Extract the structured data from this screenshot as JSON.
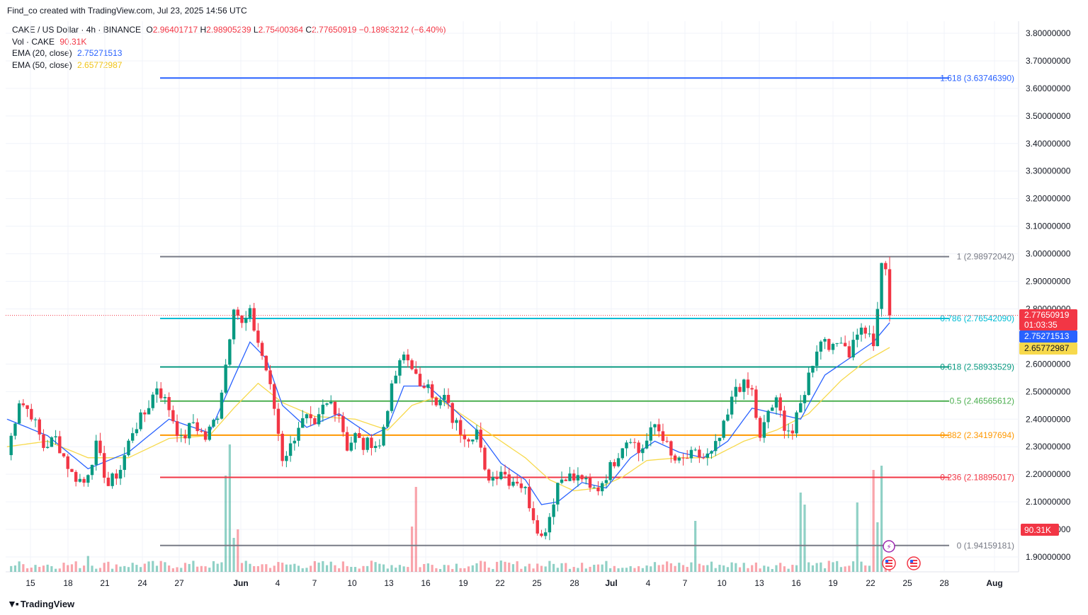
{
  "caption": "Find_co created with TradingView.com, Jul 23, 2025 14:56 UTC",
  "legend": {
    "symbol": "CAKE / US Dollar · 4h · BINANCE",
    "o_label": "O",
    "o_value": "2.96401717",
    "h_label": "H",
    "h_value": "2.98905239",
    "l_label": "L",
    "l_value": "2.75400364",
    "c_label": "C",
    "c_value": "2.77650919",
    "change": "−0.18983212 (−6.40%)",
    "vol_label": "Vol · CAKE",
    "vol_value": "90.31K",
    "ema20_label": "EMA (20, close)",
    "ema20_value": "2.75271513",
    "ema50_label": "EMA (50, close)",
    "ema50_value": "2.65772987"
  },
  "brand": "TradingView",
  "colors": {
    "up": "#089981",
    "down": "#f23645",
    "ema20": "#2962ff",
    "ema50": "#f7d94c",
    "grid": "#f0f3fa"
  },
  "price_badges": {
    "last": "2.77650919",
    "countdown": "01:03:35",
    "ema20": "2.75271513",
    "ema50": "2.65772987",
    "volume": "90.31K"
  },
  "chart_data": {
    "type": "candlestick",
    "y_range": [
      1.84,
      3.85
    ],
    "y_ticks": [
      "3.80000000",
      "3.70000000",
      "3.60000000",
      "3.50000000",
      "3.40000000",
      "3.30000000",
      "3.20000000",
      "3.10000000",
      "3.00000000",
      "2.90000000",
      "2.80000000",
      "2.60000000",
      "2.50000000",
      "2.40000000",
      "2.30000000",
      "2.20000000",
      "2.10000000",
      "2.00000000",
      "1.90000000"
    ],
    "x_ticks": [
      "15",
      "18",
      "21",
      "24",
      "27",
      "Jun",
      "4",
      "7",
      "10",
      "13",
      "16",
      "19",
      "22",
      "25",
      "28",
      "Jul",
      "4",
      "7",
      "10",
      "13",
      "16",
      "19",
      "22",
      "25",
      "28",
      "Aug"
    ],
    "fib_levels": [
      {
        "label": "1.618 (3.63746390)",
        "value": 3.6374639,
        "color": "#2962ff"
      },
      {
        "label": "1 (2.98972042)",
        "value": 2.98972042,
        "color": "#787b86"
      },
      {
        "label": "0.786 (2.76542090)",
        "value": 2.7654209,
        "color": "#00bcd4"
      },
      {
        "label": "0.618 (2.58933529)",
        "value": 2.58933529,
        "color": "#089981"
      },
      {
        "label": "0.5 (2.46565612)",
        "value": 2.46565612,
        "color": "#4caf50"
      },
      {
        "label": "0.382 (2.34197694)",
        "value": 2.34197694,
        "color": "#ff9800"
      },
      {
        "label": "0.236 (2.18895017)",
        "value": 2.18895017,
        "color": "#f23645"
      },
      {
        "label": "0 (1.94159181)",
        "value": 1.94159181,
        "color": "#787b86"
      }
    ],
    "close_path": [
      [
        0,
        2.27
      ],
      [
        3,
        2.47
      ],
      [
        6,
        2.42
      ],
      [
        9,
        2.3
      ],
      [
        12,
        2.33
      ],
      [
        16,
        2.2
      ],
      [
        19,
        2.17
      ],
      [
        22,
        2.3
      ],
      [
        25,
        2.16
      ],
      [
        28,
        2.22
      ],
      [
        31,
        2.36
      ],
      [
        34,
        2.42
      ],
      [
        37,
        2.52
      ],
      [
        40,
        2.44
      ],
      [
        43,
        2.32
      ],
      [
        46,
        2.39
      ],
      [
        49,
        2.33
      ],
      [
        52,
        2.42
      ],
      [
        54,
        2.6
      ],
      [
        56,
        2.82
      ],
      [
        58,
        2.74
      ],
      [
        60,
        2.78
      ],
      [
        62,
        2.68
      ],
      [
        64,
        2.58
      ],
      [
        66,
        2.44
      ],
      [
        68,
        2.26
      ],
      [
        70,
        2.3
      ],
      [
        72,
        2.38
      ],
      [
        74,
        2.4
      ],
      [
        76,
        2.36
      ],
      [
        78,
        2.44
      ],
      [
        80,
        2.46
      ],
      [
        82,
        2.42
      ],
      [
        84,
        2.3
      ],
      [
        86,
        2.34
      ],
      [
        88,
        2.3
      ],
      [
        90,
        2.32
      ],
      [
        92,
        2.3
      ],
      [
        94,
        2.45
      ],
      [
        96,
        2.56
      ],
      [
        98,
        2.63
      ],
      [
        100,
        2.6
      ],
      [
        102,
        2.5
      ],
      [
        104,
        2.55
      ],
      [
        106,
        2.44
      ],
      [
        108,
        2.48
      ],
      [
        110,
        2.4
      ],
      [
        112,
        2.36
      ],
      [
        114,
        2.34
      ],
      [
        116,
        2.36
      ],
      [
        118,
        2.2
      ],
      [
        120,
        2.19
      ],
      [
        122,
        2.22
      ],
      [
        124,
        2.18
      ],
      [
        126,
        2.18
      ],
      [
        128,
        2.14
      ],
      [
        130,
        2.05
      ],
      [
        132,
        1.97
      ],
      [
        134,
        2.05
      ],
      [
        136,
        2.17
      ],
      [
        138,
        2.2
      ],
      [
        140,
        2.18
      ],
      [
        142,
        2.19
      ],
      [
        144,
        2.14
      ],
      [
        146,
        2.15
      ],
      [
        148,
        2.2
      ],
      [
        150,
        2.25
      ],
      [
        152,
        2.31
      ],
      [
        154,
        2.34
      ],
      [
        156,
        2.28
      ],
      [
        158,
        2.32
      ],
      [
        160,
        2.38
      ],
      [
        162,
        2.34
      ],
      [
        164,
        2.26
      ],
      [
        166,
        2.24
      ],
      [
        168,
        2.26
      ],
      [
        170,
        2.27
      ],
      [
        172,
        2.26
      ],
      [
        174,
        2.27
      ],
      [
        176,
        2.33
      ],
      [
        178,
        2.41
      ],
      [
        180,
        2.52
      ],
      [
        182,
        2.52
      ],
      [
        184,
        2.5
      ],
      [
        186,
        2.32
      ],
      [
        188,
        2.43
      ],
      [
        190,
        2.46
      ],
      [
        192,
        2.38
      ],
      [
        194,
        2.35
      ],
      [
        196,
        2.45
      ],
      [
        198,
        2.56
      ],
      [
        200,
        2.66
      ],
      [
        202,
        2.7
      ],
      [
        204,
        2.65
      ],
      [
        206,
        2.7
      ],
      [
        208,
        2.64
      ],
      [
        210,
        2.72
      ],
      [
        212,
        2.72
      ],
      [
        214,
        2.66
      ],
      [
        216,
        2.95
      ],
      [
        217,
        2.96
      ],
      [
        218,
        2.78
      ]
    ],
    "ema20_path": [
      [
        0,
        2.4
      ],
      [
        10,
        2.34
      ],
      [
        20,
        2.22
      ],
      [
        30,
        2.28
      ],
      [
        40,
        2.4
      ],
      [
        50,
        2.35
      ],
      [
        56,
        2.55
      ],
      [
        60,
        2.68
      ],
      [
        64,
        2.62
      ],
      [
        68,
        2.45
      ],
      [
        74,
        2.37
      ],
      [
        82,
        2.42
      ],
      [
        90,
        2.34
      ],
      [
        94,
        2.37
      ],
      [
        98,
        2.52
      ],
      [
        104,
        2.52
      ],
      [
        110,
        2.44
      ],
      [
        116,
        2.36
      ],
      [
        122,
        2.24
      ],
      [
        128,
        2.18
      ],
      [
        132,
        2.09
      ],
      [
        136,
        2.1
      ],
      [
        142,
        2.17
      ],
      [
        148,
        2.15
      ],
      [
        154,
        2.26
      ],
      [
        160,
        2.32
      ],
      [
        166,
        2.28
      ],
      [
        172,
        2.26
      ],
      [
        178,
        2.32
      ],
      [
        184,
        2.44
      ],
      [
        190,
        2.42
      ],
      [
        196,
        2.4
      ],
      [
        202,
        2.56
      ],
      [
        208,
        2.62
      ],
      [
        214,
        2.68
      ],
      [
        218,
        2.75
      ]
    ],
    "ema50_path": [
      [
        0,
        2.3
      ],
      [
        10,
        2.32
      ],
      [
        20,
        2.26
      ],
      [
        30,
        2.26
      ],
      [
        40,
        2.33
      ],
      [
        50,
        2.34
      ],
      [
        56,
        2.44
      ],
      [
        62,
        2.53
      ],
      [
        68,
        2.46
      ],
      [
        76,
        2.41
      ],
      [
        86,
        2.4
      ],
      [
        94,
        2.36
      ],
      [
        100,
        2.45
      ],
      [
        106,
        2.48
      ],
      [
        112,
        2.42
      ],
      [
        120,
        2.34
      ],
      [
        128,
        2.26
      ],
      [
        134,
        2.18
      ],
      [
        140,
        2.14
      ],
      [
        146,
        2.15
      ],
      [
        152,
        2.19
      ],
      [
        158,
        2.25
      ],
      [
        166,
        2.26
      ],
      [
        174,
        2.26
      ],
      [
        182,
        2.32
      ],
      [
        190,
        2.36
      ],
      [
        198,
        2.42
      ],
      [
        206,
        2.54
      ],
      [
        212,
        2.61
      ],
      [
        218,
        2.66
      ]
    ]
  }
}
